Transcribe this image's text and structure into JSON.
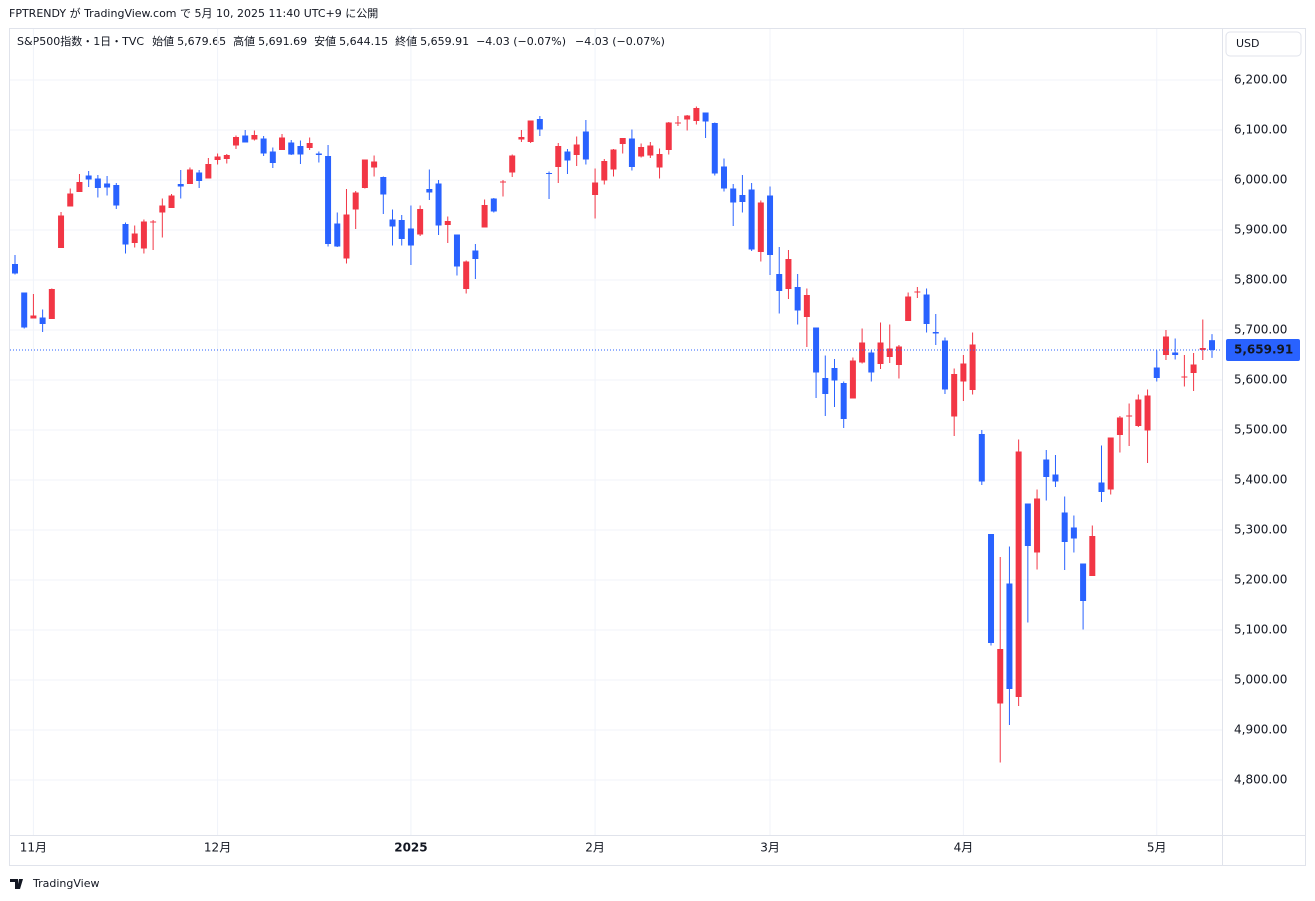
{
  "header": "FPTRENDY が TradingView.com で 5月 10, 2025 11:40 UTC+9 に公開",
  "legend": {
    "symbol": "S&P500指数・1日・TVC",
    "fields": [
      {
        "label": "始値",
        "value": "5,679.65"
      },
      {
        "label": "高値",
        "value": "5,691.69"
      },
      {
        "label": "安値",
        "value": "5,644.15"
      },
      {
        "label": "終値",
        "value": "5,659.91"
      }
    ],
    "change": "−4.03 (−0.07%)"
  },
  "currency": "USD",
  "last_price_label": "5,659.91",
  "footer": "TradingView",
  "chart_data": {
    "type": "candlestick",
    "up_color": "#f23645",
    "down_color": "#2962ff",
    "grid": true,
    "categories": [
      null,
      null,
      "11月",
      null,
      null,
      null,
      null,
      null,
      null,
      null,
      null,
      null,
      null,
      null,
      null,
      null,
      null,
      null,
      null,
      null,
      null,
      null,
      "12月",
      null,
      null,
      null,
      null,
      null,
      null,
      null,
      null,
      null,
      null,
      null,
      null,
      null,
      null,
      null,
      null,
      null,
      null,
      null,
      null,
      "2025",
      null,
      null,
      null,
      null,
      null,
      null,
      null,
      null,
      null,
      null,
      null,
      null,
      null,
      null,
      null,
      null,
      null,
      null,
      null,
      "2月",
      null,
      null,
      null,
      null,
      null,
      null,
      null,
      null,
      null,
      null,
      null,
      null,
      null,
      null,
      null,
      null,
      null,
      null,
      "3月",
      null,
      null,
      null,
      null,
      null,
      null,
      null,
      null,
      null,
      null,
      null,
      null,
      null,
      null,
      null,
      null,
      null,
      null,
      null,
      null,
      "4月",
      null,
      null,
      null,
      null,
      null,
      null,
      null,
      null,
      null,
      null,
      null,
      null,
      null,
      null,
      null,
      null,
      null,
      null,
      null,
      null,
      "5月",
      null,
      null,
      null,
      null,
      null,
      null
    ],
    "open": [
      5832,
      5775,
      5723,
      5725,
      5722,
      5864,
      5947,
      5976,
      6009,
      6003,
      5993,
      5990,
      5912,
      5874,
      5863,
      5917,
      5935,
      5944,
      5992,
      5992,
      6015,
      6003,
      6040,
      6042,
      6069,
      6089,
      6081,
      6083,
      6057,
      6060,
      6075,
      6068,
      6064,
      6053,
      6048,
      5913,
      5843,
      5941,
      5984,
      6025,
      6006,
      5921,
      5920,
      5903,
      5891,
      5982,
      5993,
      5910,
      5891,
      5782,
      5859,
      5905,
      5963,
      5995,
      6015,
      6081,
      6076,
      6122,
      6014,
      6026,
      6057,
      6050,
      6097,
      5970,
      5999,
      6021,
      6072,
      6083,
      6047,
      6049,
      6025,
      6060,
      6115,
      6121,
      6118,
      6135,
      6114,
      6027,
      5983,
      5970,
      5981,
      5856,
      5969,
      5812,
      5782,
      5786,
      5726,
      5705,
      5604,
      5624,
      5594,
      5563,
      5635,
      5655,
      5632,
      5646,
      5630,
      5718,
      5775,
      5771,
      5696,
      5679,
      5527,
      5597,
      5580,
      5492,
      5292,
      4953,
      5193,
      4966,
      5353,
      5255,
      5441,
      5411,
      5335,
      5305,
      5233,
      5208,
      5395,
      5381,
      5490,
      5529,
      5508,
      5499,
      5625,
      5650,
      5655,
      5607,
      5614,
      5660,
      5679.65
    ],
    "high": [
      5850,
      5775,
      5772,
      5741,
      5783,
      5936,
      5983,
      6012,
      6018,
      6010,
      6008,
      5994,
      5915,
      5909,
      5921,
      5920,
      5963,
      5972,
      6020,
      6025,
      6020,
      6044,
      6053,
      6052,
      6089,
      6100,
      6099,
      6088,
      6065,
      6092,
      6080,
      6079,
      6085,
      6057,
      6070,
      5935,
      5982,
      5978,
      6041,
      6049,
      6007,
      5941,
      5930,
      5949,
      5949,
      6021,
      6000,
      5927,
      5891,
      5839,
      5872,
      5961,
      5964,
      6000,
      6051,
      6100,
      6119,
      6128,
      6017,
      6074,
      6062,
      6087,
      6120,
      6023,
      6042,
      6062,
      6084,
      6101,
      6073,
      6076,
      6063,
      6116,
      6128,
      6130,
      6147,
      6135,
      6115,
      6043,
      5992,
      6010,
      5994,
      5959,
      5987,
      5866,
      5860,
      5812,
      5783,
      5705,
      5649,
      5642,
      5597,
      5645,
      5703,
      5659,
      5715,
      5711,
      5670,
      5775,
      5786,
      5783,
      5732,
      5685,
      5623,
      5650,
      5695,
      5500,
      5292,
      5246,
      5267,
      5481,
      5353,
      5381,
      5460,
      5450,
      5367,
      5329,
      5233,
      5309,
      5469,
      5485,
      5528,
      5553,
      5571,
      5581,
      5659,
      5700,
      5683,
      5650,
      5654,
      5721,
      5691.69
    ],
    "low": [
      5811,
      5703,
      5723,
      5696,
      5722,
      5864,
      5947,
      5976,
      5986,
      5965,
      5969,
      5942,
      5853,
      5865,
      5853,
      5860,
      5885,
      5944,
      5963,
      5992,
      5984,
      6003,
      6031,
      6033,
      6062,
      6075,
      6079,
      6048,
      6024,
      6060,
      6050,
      6032,
      6060,
      6035,
      5867,
      5866,
      5833,
      5902,
      5983,
      6007,
      5932,
      5869,
      5869,
      5830,
      5888,
      5960,
      5890,
      5874,
      5809,
      5773,
      5802,
      5905,
      5935,
      5967,
      6006,
      6076,
      6074,
      6088,
      5962,
      5994,
      6012,
      6028,
      6031,
      5923,
      5991,
      6007,
      6053,
      6019,
      6045,
      6044,
      6003,
      6051,
      6108,
      6099,
      6111,
      6084,
      6009,
      5977,
      5908,
      5935,
      5858,
      5837,
      5810,
      5733,
      5762,
      5711,
      5666,
      5564,
      5528,
      5546,
      5504,
      5563,
      5633,
      5597,
      5622,
      5634,
      5603,
      5718,
      5764,
      5695,
      5670,
      5572,
      5488,
      5558,
      5571,
      5390,
      5069,
      4835,
      4910,
      4948,
      5115,
      5221,
      5359,
      5386,
      5220,
      5255,
      5101,
      5208,
      5356,
      5371,
      5455,
      5468,
      5506,
      5434,
      5597,
      5640,
      5641,
      5587,
      5578,
      5640,
      5644.15
    ],
    "close": [
      5813,
      5705,
      5729,
      5712,
      5782,
      5929,
      5973,
      5996,
      6001,
      5984,
      5985,
      5949,
      5871,
      5893,
      5917,
      5917,
      5949,
      5969,
      5987,
      6021,
      5998,
      6032,
      6047,
      6050,
      6086,
      6075,
      6090,
      6053,
      6034,
      6085,
      6051,
      6051,
      6074,
      6050,
      5872,
      5867,
      5931,
      5975,
      6041,
      6037,
      5971,
      5907,
      5882,
      5869,
      5942,
      5975,
      5909,
      5918,
      5827,
      5837,
      5842,
      5950,
      5937,
      5997,
      6049,
      6086,
      6119,
      6101,
      6012,
      6068,
      6039,
      6071,
      6041,
      5995,
      6038,
      6061,
      6084,
      6026,
      6066,
      6069,
      6052,
      6115,
      6115,
      6129,
      6144,
      6117,
      6013,
      5983,
      5955,
      5956,
      5861,
      5955,
      5850,
      5778,
      5842,
      5739,
      5770,
      5615,
      5572,
      5599,
      5522,
      5639,
      5675,
      5615,
      5675,
      5663,
      5667,
      5767,
      5777,
      5712,
      5693,
      5581,
      5612,
      5633,
      5671,
      5397,
      5074,
      5062,
      4982,
      5457,
      5268,
      5363,
      5406,
      5397,
      5276,
      5283,
      5158,
      5288,
      5376,
      5485,
      5525,
      5529,
      5561,
      5569,
      5604,
      5687,
      5650,
      5607,
      5631,
      5664,
      5659.91
    ],
    "ylim": [
      4700,
      6300
    ],
    "yticks": [
      {
        "value": 4800,
        "label": "4,800.00"
      },
      {
        "value": 4900,
        "label": "4,900.00"
      },
      {
        "value": 5000,
        "label": "5,000.00"
      },
      {
        "value": 5100,
        "label": "5,100.00"
      },
      {
        "value": 5200,
        "label": "5,200.00"
      },
      {
        "value": 5300,
        "label": "5,300.00"
      },
      {
        "value": 5400,
        "label": "5,400.00"
      },
      {
        "value": 5500,
        "label": "5,500.00"
      },
      {
        "value": 5600,
        "label": "5,600.00"
      },
      {
        "value": 5700,
        "label": "5,700.00"
      },
      {
        "value": 5800,
        "label": "5,800.00"
      },
      {
        "value": 5900,
        "label": "5,900.00"
      },
      {
        "value": 6000,
        "label": "6,000.00"
      },
      {
        "value": 6100,
        "label": "6,100.00"
      },
      {
        "value": 6200,
        "label": "6,200.00"
      }
    ]
  }
}
